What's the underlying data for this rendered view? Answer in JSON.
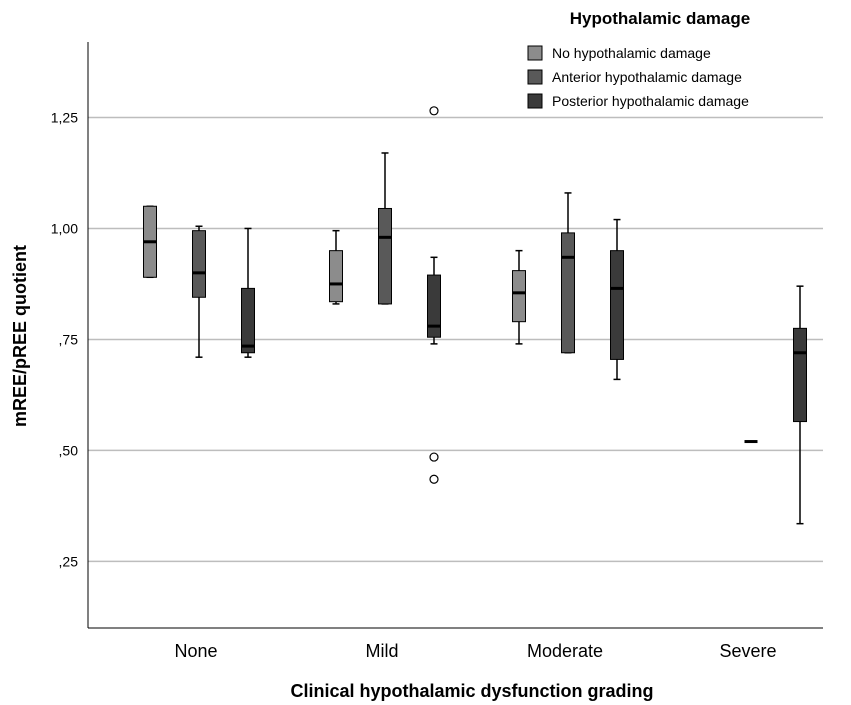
{
  "chart_data": {
    "type": "boxplot",
    "title": "",
    "xlabel": "Clinical hypothalamic dysfunction grading",
    "ylabel": "mREE/pREE quotient",
    "ylim": [
      0.1,
      1.42
    ],
    "yticks": [
      0.25,
      0.5,
      0.75,
      1.0,
      1.25
    ],
    "ytick_labels": [
      ",25",
      ",50",
      ",75",
      "1,00",
      "1,25"
    ],
    "grid": "horizontal",
    "legend_position": "top-right",
    "legend_title": "Hypothalamic damage",
    "categories": [
      "None",
      "Mild",
      "Moderate",
      "Severe"
    ],
    "series": [
      {
        "name": "No hypothalamic damage",
        "color": "#8c8c8c",
        "boxes": [
          {
            "category": "None",
            "min": 0.89,
            "q1": 0.89,
            "median": 0.97,
            "q3": 1.05,
            "max": 1.05,
            "outliers": []
          },
          {
            "category": "Mild",
            "min": 0.83,
            "q1": 0.835,
            "median": 0.875,
            "q3": 0.95,
            "max": 0.995,
            "outliers": []
          },
          {
            "category": "Moderate",
            "min": 0.74,
            "q1": 0.79,
            "median": 0.855,
            "q3": 0.905,
            "max": 0.95,
            "outliers": []
          }
        ]
      },
      {
        "name": "Anterior hypothalamic damage",
        "color": "#595959",
        "boxes": [
          {
            "category": "None",
            "min": 0.71,
            "q1": 0.845,
            "median": 0.9,
            "q3": 0.995,
            "max": 1.005,
            "outliers": []
          },
          {
            "category": "Mild",
            "min": 0.83,
            "q1": 0.83,
            "median": 0.98,
            "q3": 1.045,
            "max": 1.17,
            "outliers": []
          },
          {
            "category": "Moderate",
            "min": 0.72,
            "q1": 0.72,
            "median": 0.935,
            "q3": 0.99,
            "max": 1.08,
            "outliers": []
          },
          {
            "category": "Severe",
            "min": 0.52,
            "q1": 0.52,
            "median": 0.52,
            "q3": 0.52,
            "max": 0.52,
            "outliers": []
          }
        ]
      },
      {
        "name": "Posterior hypothalamic damage",
        "color": "#3a3a3a",
        "boxes": [
          {
            "category": "None",
            "min": 0.71,
            "q1": 0.72,
            "median": 0.735,
            "q3": 0.865,
            "max": 1.0,
            "outliers": []
          },
          {
            "category": "Mild",
            "min": 0.74,
            "q1": 0.755,
            "median": 0.78,
            "q3": 0.895,
            "max": 0.935,
            "outliers": [
              1.265,
              0.485,
              0.435
            ]
          },
          {
            "category": "Moderate",
            "min": 0.66,
            "q1": 0.705,
            "median": 0.865,
            "q3": 0.95,
            "max": 1.02,
            "outliers": []
          },
          {
            "category": "Severe",
            "min": 0.335,
            "q1": 0.565,
            "median": 0.72,
            "q3": 0.775,
            "max": 0.87,
            "outliers": []
          }
        ]
      }
    ]
  }
}
